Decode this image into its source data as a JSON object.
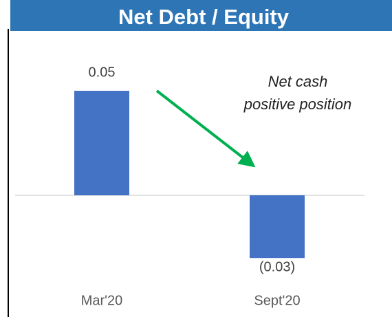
{
  "chart_data": {
    "type": "bar",
    "title": "Net Debt / Equity",
    "categories": [
      "Mar'20",
      "Sept'20"
    ],
    "values": [
      0.05,
      -0.03
    ],
    "value_labels": [
      "0.05",
      "(0.03)"
    ],
    "color": "#4472c4",
    "annotation": [
      "Net cash",
      "positive position"
    ],
    "ylim": [
      -0.04,
      0.06
    ]
  }
}
